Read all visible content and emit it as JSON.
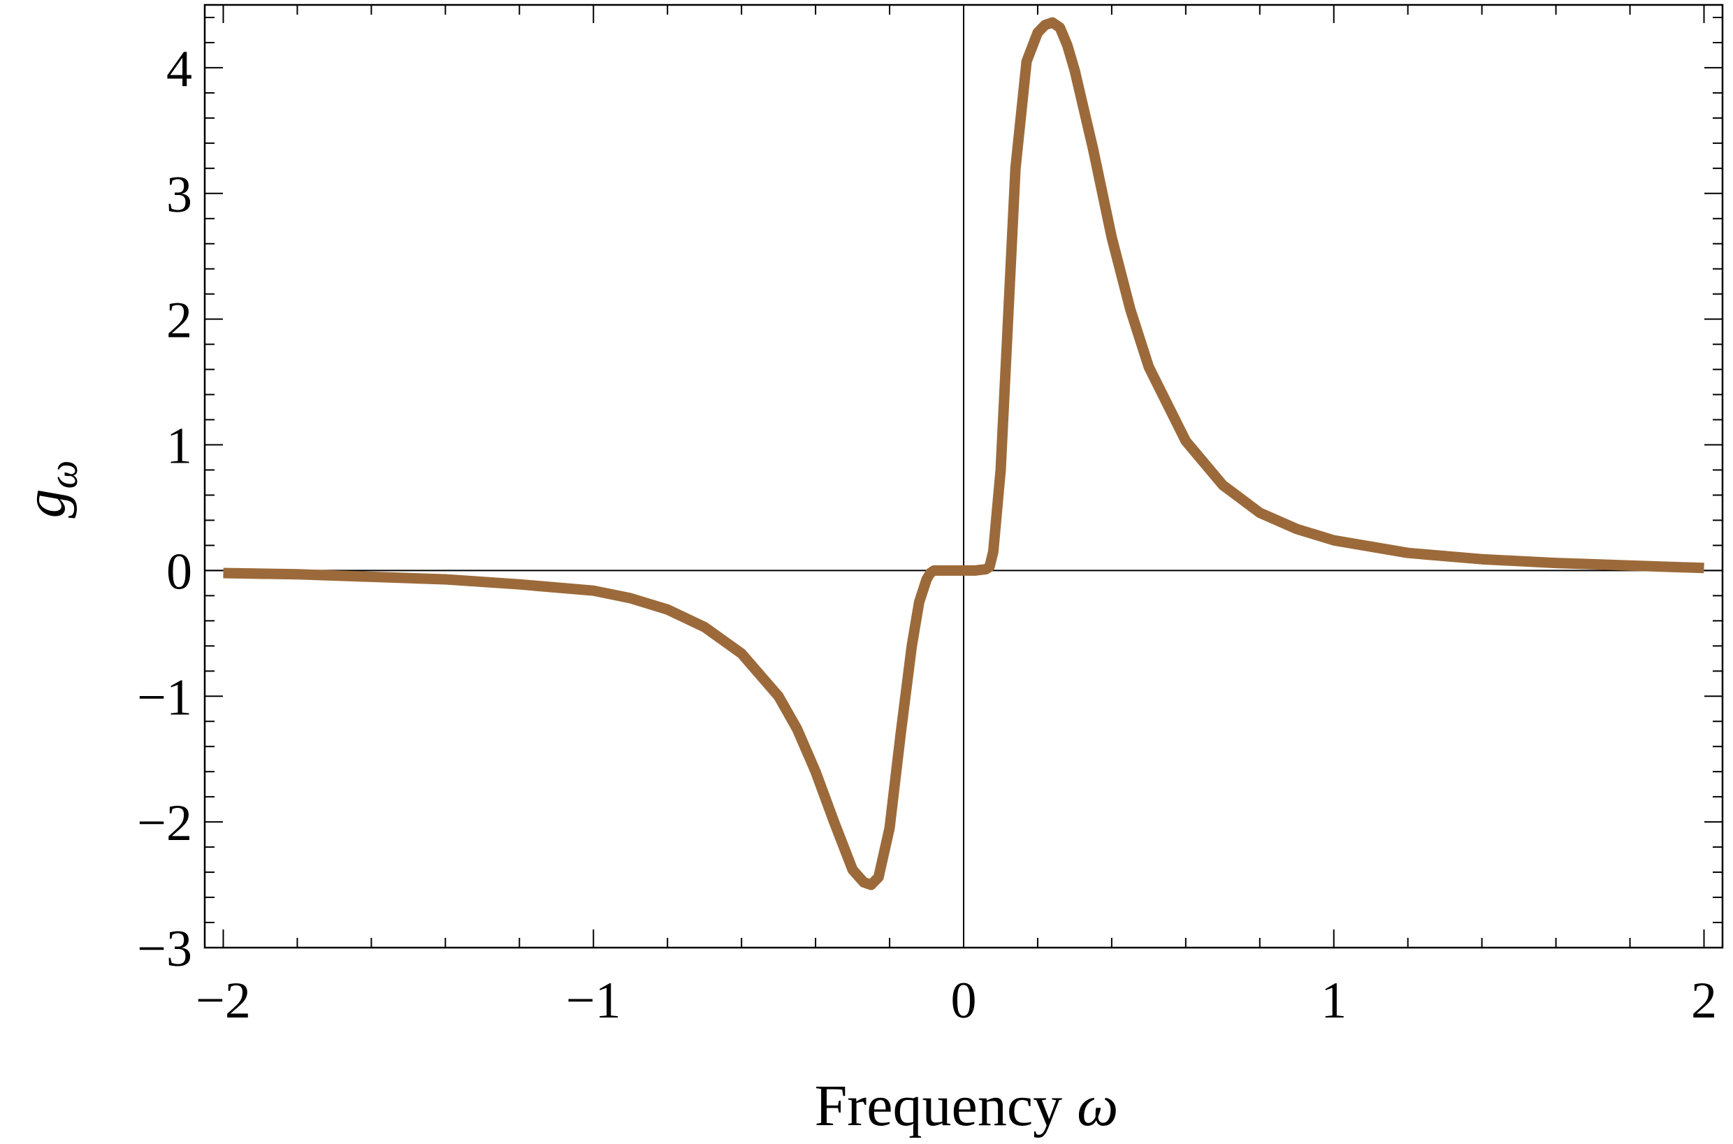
{
  "chart_data": {
    "type": "line",
    "title": "",
    "xlabel": "Frequency ω",
    "xlabel_text": "Frequency",
    "xlabel_symbol": "ω",
    "ylabel": "gω",
    "ylabel_base": "g",
    "ylabel_sub": "ω",
    "xlim": [
      -2.05,
      2.05
    ],
    "ylim": [
      -3.0,
      4.5
    ],
    "x_ticks": [
      -2,
      -1,
      0,
      1,
      2
    ],
    "x_tick_labels": [
      "−2",
      "−1",
      "0",
      "1",
      "2"
    ],
    "y_ticks": [
      -3,
      -2,
      -1,
      0,
      1,
      2,
      3,
      4
    ],
    "y_tick_labels": [
      "−3",
      "−2",
      "−1",
      "0",
      "1",
      "2",
      "3",
      "4"
    ],
    "frame": true,
    "grid": false,
    "legend": "none",
    "series": [
      {
        "color": "#9c6a3a",
        "x": [
          -2.0,
          -1.8,
          -1.6,
          -1.4,
          -1.2,
          -1.0,
          -0.9,
          -0.8,
          -0.7,
          -0.6,
          -0.5,
          -0.45,
          -0.4,
          -0.35,
          -0.3,
          -0.27,
          -0.25,
          -0.23,
          -0.2,
          -0.17,
          -0.14,
          -0.12,
          -0.1,
          -0.09,
          -0.08,
          -0.06,
          -0.03,
          0.0,
          0.03,
          0.06,
          0.07,
          0.08,
          0.1,
          0.12,
          0.14,
          0.17,
          0.2,
          0.22,
          0.24,
          0.26,
          0.28,
          0.3,
          0.35,
          0.4,
          0.45,
          0.5,
          0.6,
          0.7,
          0.8,
          0.9,
          1.0,
          1.2,
          1.4,
          1.6,
          1.8,
          2.0
        ],
        "y": [
          -0.02,
          -0.03,
          -0.05,
          -0.07,
          -0.11,
          -0.16,
          -0.22,
          -0.31,
          -0.45,
          -0.66,
          -1.0,
          -1.26,
          -1.6,
          -2.0,
          -2.38,
          -2.48,
          -2.5,
          -2.44,
          -2.05,
          -1.3,
          -0.6,
          -0.25,
          -0.07,
          -0.02,
          0.0,
          0.0,
          0.0,
          0.0,
          0.0,
          0.01,
          0.03,
          0.15,
          0.8,
          2.0,
          3.2,
          4.05,
          4.28,
          4.34,
          4.36,
          4.32,
          4.18,
          3.98,
          3.35,
          2.65,
          2.08,
          1.62,
          1.03,
          0.68,
          0.46,
          0.33,
          0.24,
          0.14,
          0.09,
          0.06,
          0.04,
          0.02
        ]
      }
    ]
  }
}
